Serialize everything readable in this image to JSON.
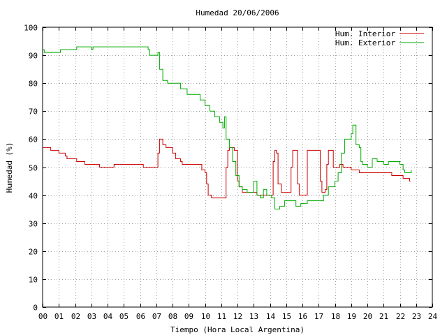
{
  "chart_data": {
    "type": "line",
    "title": "Humedad 20/06/2006",
    "xlabel": "Tiempo (Hora Local Argentina)",
    "ylabel": "Humedad (%)",
    "xlim": [
      0,
      24
    ],
    "ylim": [
      0,
      100
    ],
    "xticks": [
      "00",
      "01",
      "02",
      "03",
      "04",
      "05",
      "06",
      "07",
      "08",
      "09",
      "10",
      "11",
      "12",
      "13",
      "14",
      "15",
      "16",
      "17",
      "18",
      "19",
      "20",
      "21",
      "22",
      "23",
      "24"
    ],
    "yticks": [
      "0",
      "10",
      "20",
      "30",
      "40",
      "50",
      "60",
      "70",
      "80",
      "90",
      "100"
    ],
    "grid": true,
    "legend_position": "top-right",
    "series": [
      {
        "name": "Hum. Interior",
        "color": "#cc0000",
        "points": [
          [
            0.0,
            57
          ],
          [
            0.45,
            57
          ],
          [
            0.5,
            56
          ],
          [
            0.9,
            56
          ],
          [
            1.0,
            55
          ],
          [
            1.3,
            55
          ],
          [
            1.4,
            54
          ],
          [
            1.5,
            53
          ],
          [
            2.0,
            53
          ],
          [
            2.1,
            52
          ],
          [
            2.5,
            52
          ],
          [
            2.6,
            51
          ],
          [
            3.3,
            51
          ],
          [
            3.5,
            50
          ],
          [
            4.3,
            50
          ],
          [
            4.4,
            51
          ],
          [
            5.0,
            51
          ],
          [
            5.5,
            51
          ],
          [
            6.0,
            51
          ],
          [
            6.2,
            50
          ],
          [
            7.0,
            50
          ],
          [
            7.1,
            55
          ],
          [
            7.2,
            60
          ],
          [
            7.3,
            60
          ],
          [
            7.4,
            58
          ],
          [
            7.6,
            57
          ],
          [
            8.0,
            55
          ],
          [
            8.2,
            53
          ],
          [
            8.5,
            52
          ],
          [
            8.6,
            51
          ],
          [
            9.5,
            51
          ],
          [
            9.8,
            49
          ],
          [
            10.0,
            48
          ],
          [
            10.1,
            44
          ],
          [
            10.2,
            40
          ],
          [
            10.4,
            39
          ],
          [
            11.2,
            39
          ],
          [
            11.3,
            50
          ],
          [
            11.4,
            56
          ],
          [
            11.5,
            57
          ],
          [
            11.8,
            56
          ],
          [
            12.0,
            45
          ],
          [
            12.1,
            43
          ],
          [
            12.3,
            41
          ],
          [
            13.0,
            41
          ],
          [
            13.2,
            40
          ],
          [
            14.0,
            40
          ],
          [
            14.2,
            52
          ],
          [
            14.3,
            56
          ],
          [
            14.4,
            55
          ],
          [
            14.5,
            44
          ],
          [
            14.7,
            41
          ],
          [
            15.2,
            41
          ],
          [
            15.3,
            50
          ],
          [
            15.4,
            56
          ],
          [
            15.6,
            56
          ],
          [
            15.7,
            44
          ],
          [
            15.8,
            40
          ],
          [
            16.1,
            40
          ],
          [
            16.3,
            56
          ],
          [
            16.9,
            56
          ],
          [
            17.1,
            45
          ],
          [
            17.2,
            41
          ],
          [
            17.4,
            42
          ],
          [
            17.5,
            51
          ],
          [
            17.6,
            56
          ],
          [
            17.8,
            56
          ],
          [
            17.9,
            50
          ],
          [
            18.0,
            50
          ],
          [
            18.3,
            51
          ],
          [
            18.5,
            50
          ],
          [
            19.0,
            49
          ],
          [
            19.3,
            49
          ],
          [
            19.5,
            48
          ],
          [
            20.0,
            48
          ],
          [
            21.0,
            48
          ],
          [
            21.5,
            47
          ],
          [
            22.0,
            47
          ],
          [
            22.2,
            46
          ],
          [
            22.5,
            46
          ],
          [
            22.6,
            45
          ],
          [
            22.65,
            45
          ]
        ]
      },
      {
        "name": "Hum. Exterior",
        "color": "#00aa00",
        "points": [
          [
            0.0,
            92
          ],
          [
            0.1,
            91
          ],
          [
            1.0,
            91
          ],
          [
            1.1,
            92
          ],
          [
            2.0,
            92
          ],
          [
            2.1,
            93
          ],
          [
            2.9,
            93
          ],
          [
            3.0,
            92
          ],
          [
            3.1,
            93
          ],
          [
            6.3,
            93
          ],
          [
            6.5,
            92
          ],
          [
            6.6,
            90
          ],
          [
            7.0,
            90
          ],
          [
            7.1,
            91
          ],
          [
            7.2,
            85
          ],
          [
            7.4,
            81
          ],
          [
            7.7,
            80
          ],
          [
            8.2,
            80
          ],
          [
            8.5,
            78
          ],
          [
            8.9,
            76
          ],
          [
            9.5,
            76
          ],
          [
            9.7,
            74
          ],
          [
            10.0,
            72
          ],
          [
            10.3,
            70
          ],
          [
            10.6,
            68
          ],
          [
            10.9,
            66
          ],
          [
            11.1,
            64
          ],
          [
            11.2,
            68
          ],
          [
            11.3,
            60
          ],
          [
            11.5,
            57
          ],
          [
            11.7,
            52
          ],
          [
            11.9,
            47
          ],
          [
            12.1,
            43
          ],
          [
            12.3,
            42
          ],
          [
            12.6,
            41
          ],
          [
            13.0,
            45
          ],
          [
            13.2,
            40
          ],
          [
            13.4,
            39
          ],
          [
            13.6,
            42
          ],
          [
            13.8,
            40
          ],
          [
            14.1,
            39
          ],
          [
            14.3,
            35
          ],
          [
            14.6,
            36
          ],
          [
            14.9,
            38
          ],
          [
            15.3,
            38
          ],
          [
            15.6,
            36
          ],
          [
            15.9,
            37
          ],
          [
            16.3,
            38
          ],
          [
            16.6,
            38
          ],
          [
            17.0,
            38
          ],
          [
            17.3,
            40
          ],
          [
            17.6,
            43
          ],
          [
            18.0,
            45
          ],
          [
            18.2,
            48
          ],
          [
            18.4,
            55
          ],
          [
            18.6,
            60
          ],
          [
            18.8,
            60
          ],
          [
            19.0,
            62
          ],
          [
            19.1,
            65
          ],
          [
            19.3,
            58
          ],
          [
            19.5,
            57
          ],
          [
            19.6,
            52
          ],
          [
            19.7,
            51
          ],
          [
            20.0,
            50
          ],
          [
            20.3,
            53
          ],
          [
            20.6,
            52
          ],
          [
            21.0,
            51
          ],
          [
            21.3,
            52
          ],
          [
            21.7,
            52
          ],
          [
            22.0,
            51
          ],
          [
            22.2,
            49
          ],
          [
            22.3,
            48
          ],
          [
            22.6,
            48
          ],
          [
            22.7,
            49
          ]
        ]
      }
    ]
  }
}
